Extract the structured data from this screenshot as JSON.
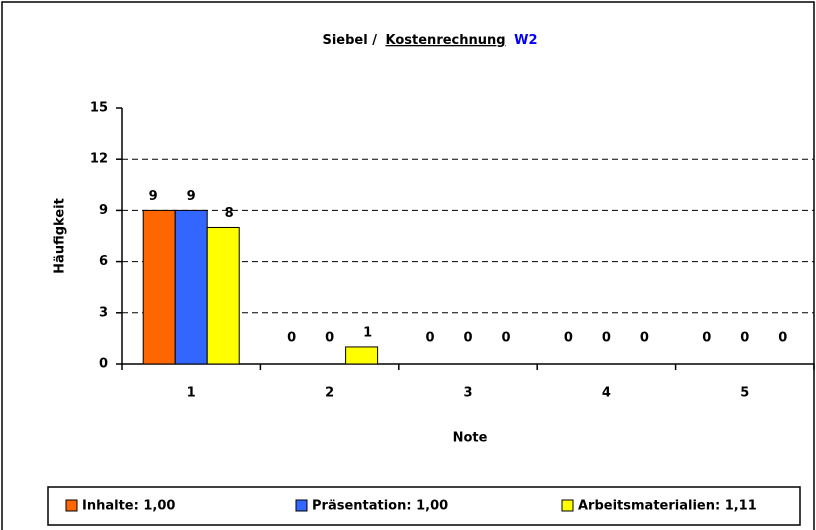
{
  "chart_data": {
    "type": "bar",
    "title": [
      "Siebel /",
      "Kostenrechnung",
      "W2"
    ],
    "title_colors": [
      "#000000",
      "#000000",
      "#0000ff"
    ],
    "xlabel": "Note",
    "ylabel": "Häufigkeit",
    "categories": [
      "1",
      "2",
      "3",
      "4",
      "5"
    ],
    "series": [
      {
        "name": "Inhalte: 1,00",
        "color": "#ff6600",
        "values": [
          9,
          0,
          0,
          0,
          0
        ]
      },
      {
        "name": "Präsentation: 1,00",
        "color": "#3366ff",
        "values": [
          9,
          0,
          0,
          0,
          0
        ]
      },
      {
        "name": "Arbeitsmaterialien: 1,11",
        "color": "#ffff00",
        "values": [
          8,
          1,
          0,
          0,
          0
        ]
      }
    ],
    "ylim": [
      0,
      15
    ],
    "yticks": [
      0,
      3,
      6,
      9,
      12,
      15
    ],
    "grid": true,
    "legend": "bottom"
  }
}
